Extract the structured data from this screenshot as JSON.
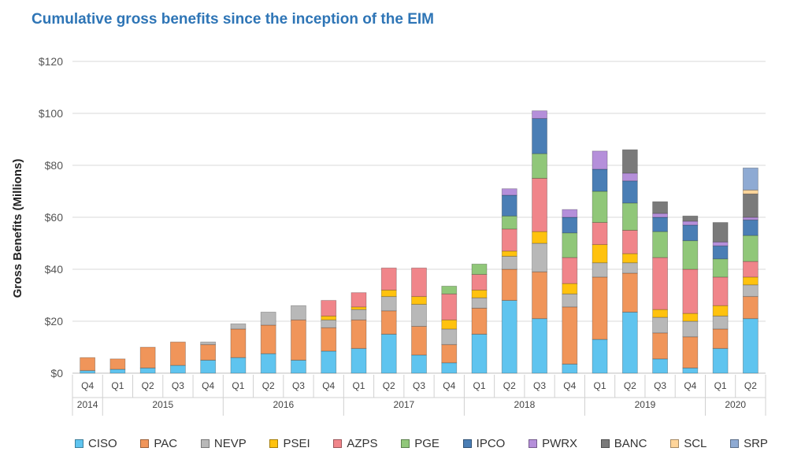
{
  "chart_data": {
    "type": "bar",
    "stacked": true,
    "title": "Cumulative gross benefits since the inception of the EIM",
    "ylabel": "Gross Benefits (Millions)",
    "xlabel": "",
    "ylim": [
      0,
      120
    ],
    "yticks": [
      "$0",
      "$20",
      "$40",
      "$60",
      "$80",
      "$100",
      "$120"
    ],
    "ytick_values": [
      0,
      20,
      40,
      60,
      80,
      100,
      120
    ],
    "grid": true,
    "legend_position": "bottom",
    "categories": [
      "Q4",
      "Q1",
      "Q2",
      "Q3",
      "Q4",
      "Q1",
      "Q2",
      "Q3",
      "Q4",
      "Q1",
      "Q2",
      "Q3",
      "Q4",
      "Q1",
      "Q2",
      "Q3",
      "Q4",
      "Q1",
      "Q2",
      "Q3",
      "Q4",
      "Q1",
      "Q2"
    ],
    "year_groups": [
      {
        "label": "2014",
        "count": 1
      },
      {
        "label": "2015",
        "count": 4
      },
      {
        "label": "2016",
        "count": 4
      },
      {
        "label": "2017",
        "count": 4
      },
      {
        "label": "2018",
        "count": 4
      },
      {
        "label": "2019",
        "count": 4
      },
      {
        "label": "2020",
        "count": 2
      }
    ],
    "series": [
      {
        "name": "CISO",
        "color": "#5fc4ef",
        "values": [
          1,
          1.5,
          2,
          3,
          5,
          6,
          7.5,
          5,
          8.5,
          9.5,
          15,
          7,
          4,
          15,
          28,
          21,
          3.5,
          13,
          23.5,
          5.5,
          2,
          9.5,
          21
        ]
      },
      {
        "name": "PAC",
        "color": "#f0955a",
        "values": [
          5,
          4,
          8,
          9,
          6,
          11,
          11,
          15.5,
          9,
          11,
          9,
          11,
          7,
          10,
          12,
          18,
          22,
          24,
          15,
          10,
          12,
          7.5,
          8.5
        ]
      },
      {
        "name": "NEVP",
        "color": "#b8b8b8",
        "values": [
          0,
          0,
          0,
          0,
          1,
          2,
          5,
          5.5,
          3,
          4,
          5.5,
          8.5,
          6,
          4,
          5,
          11,
          5,
          5.5,
          4,
          6,
          6,
          5,
          4.5
        ]
      },
      {
        "name": "PSEI",
        "color": "#ffc20e",
        "values": [
          0,
          0,
          0,
          0,
          0,
          0,
          0,
          0,
          1.5,
          1,
          2.5,
          3,
          3.5,
          3,
          2,
          4.5,
          4,
          7,
          3.5,
          3,
          3,
          4,
          3
        ]
      },
      {
        "name": "AZPS",
        "color": "#f0858a",
        "values": [
          0,
          0,
          0,
          0,
          0,
          0,
          0,
          0,
          6,
          5.5,
          8.5,
          11,
          10,
          6,
          8.5,
          20.5,
          10,
          8.5,
          9,
          20,
          17,
          11,
          6
        ]
      },
      {
        "name": "PGE",
        "color": "#90c779",
        "values": [
          0,
          0,
          0,
          0,
          0,
          0,
          0,
          0,
          0,
          0,
          0,
          0,
          3,
          4,
          5,
          9.5,
          9.5,
          12,
          10.5,
          10,
          11,
          7,
          10
        ]
      },
      {
        "name": "IPCO",
        "color": "#4a7eb5",
        "values": [
          0,
          0,
          0,
          0,
          0,
          0,
          0,
          0,
          0,
          0,
          0,
          0,
          0,
          0,
          8,
          13.5,
          6,
          8.5,
          8.5,
          5.5,
          6,
          5,
          6
        ]
      },
      {
        "name": "PWRX",
        "color": "#b58fda",
        "values": [
          0,
          0,
          0,
          0,
          0,
          0,
          0,
          0,
          0,
          0,
          0,
          0,
          0,
          0,
          2.5,
          3,
          3,
          7,
          3,
          1.5,
          1.5,
          1.5,
          1
        ]
      },
      {
        "name": "BANC",
        "color": "#7a7a7a",
        "values": [
          0,
          0,
          0,
          0,
          0,
          0,
          0,
          0,
          0,
          0,
          0,
          0,
          0,
          0,
          0,
          0,
          0,
          0,
          9,
          4.5,
          2,
          7.5,
          9
        ]
      },
      {
        "name": "SCL",
        "color": "#ffd59a",
        "values": [
          0,
          0,
          0,
          0,
          0,
          0,
          0,
          0,
          0,
          0,
          0,
          0,
          0,
          0,
          0,
          0,
          0,
          0,
          0,
          0,
          0,
          0,
          1.5
        ]
      },
      {
        "name": "SRP",
        "color": "#8eaad3",
        "values": [
          0,
          0,
          0,
          0,
          0,
          0,
          0,
          0,
          0,
          0,
          0,
          0,
          0,
          0,
          0,
          0,
          0,
          0,
          0,
          0,
          0,
          0,
          8.5
        ]
      }
    ]
  }
}
